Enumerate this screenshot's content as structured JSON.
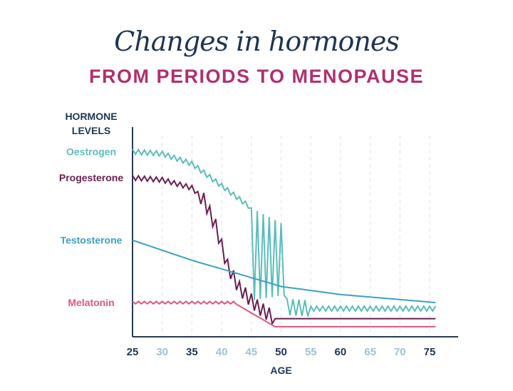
{
  "title": "Changes in hormones",
  "subtitle": "FROM PERIODS TO MENOPAUSE",
  "chart_data": {
    "type": "line",
    "title": "Changes in hormones",
    "subtitle": "FROM PERIODS TO MENOPAUSE",
    "ylabel_lines": [
      "HORMONE",
      "LEVELS"
    ],
    "xlabel": "AGE",
    "xlim": [
      25,
      80
    ],
    "ylim": [
      0,
      100
    ],
    "x_ticks": [
      {
        "label": "25",
        "value": 25,
        "emphasis": true
      },
      {
        "label": "30",
        "value": 30,
        "emphasis": false
      },
      {
        "label": "35",
        "value": 35,
        "emphasis": true
      },
      {
        "label": "40",
        "value": 40,
        "emphasis": false
      },
      {
        "label": "45",
        "value": 45,
        "emphasis": false
      },
      {
        "label": "50",
        "value": 50,
        "emphasis": true
      },
      {
        "label": "55",
        "value": 55,
        "emphasis": false
      },
      {
        "label": "60",
        "value": 60,
        "emphasis": true
      },
      {
        "label": "65",
        "value": 65,
        "emphasis": false
      },
      {
        "label": "70",
        "value": 70,
        "emphasis": false
      },
      {
        "label": "75",
        "value": 75,
        "emphasis": true
      }
    ],
    "y_ticks_shown": false,
    "grid": "vertical dashed",
    "tick_colors": {
      "emphasis": "#1f3552",
      "muted": "#9cc3d3"
    },
    "series": [
      {
        "name": "Oestrogen",
        "color": "#5bbdb8",
        "fluctuation": 1.2,
        "x": [
          25,
          30,
          35,
          40,
          45,
          50,
          55,
          76
        ],
        "y": [
          92,
          91,
          86,
          75,
          64,
          15,
          14,
          14
        ],
        "irregular_swings": {
          "from_age": 45,
          "to_age": 50.5,
          "high": 64,
          "low": 18
        }
      },
      {
        "name": "Progesterone",
        "color": "#6a1f50",
        "fluctuation": 1.2,
        "x": [
          25,
          30,
          35,
          37,
          39,
          41,
          43,
          46,
          49,
          76
        ],
        "y": [
          79,
          78,
          74,
          68,
          55,
          35,
          24,
          15,
          9,
          9
        ],
        "steep_fluctuation": 3.5
      },
      {
        "name": "Testosterone",
        "color": "#3ba1c3",
        "fluctuation": 0,
        "x": [
          25,
          35,
          42,
          50,
          60,
          76
        ],
        "y": [
          48,
          38,
          32,
          25,
          21,
          17
        ]
      },
      {
        "name": "Melatonin",
        "color": "#e0577d",
        "fluctuation": 0.6,
        "x": [
          25,
          42,
          49,
          76
        ],
        "y": [
          17,
          17,
          5,
          5
        ]
      }
    ]
  }
}
